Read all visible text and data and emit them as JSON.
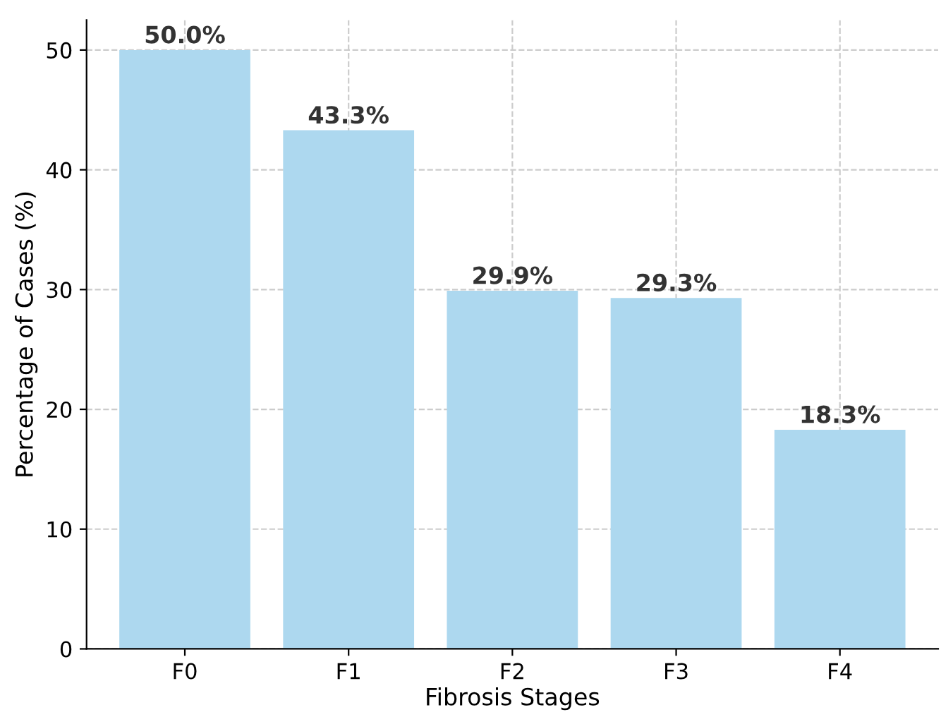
{
  "chart_data": {
    "type": "bar",
    "xlabel": "Fibrosis Stages",
    "ylabel": "Percentage of Cases (%)",
    "categories": [
      "F0",
      "F1",
      "F2",
      "F3",
      "F4"
    ],
    "values": [
      50.0,
      43.3,
      29.9,
      29.3,
      18.3
    ],
    "value_labels": [
      "50.0%",
      "43.3%",
      "29.9%",
      "29.3%",
      "18.3%"
    ],
    "color": "#add8ef",
    "ylim": [
      0,
      52.5
    ],
    "yticks": [
      0,
      10,
      20,
      30,
      40,
      50
    ],
    "grid": true
  }
}
